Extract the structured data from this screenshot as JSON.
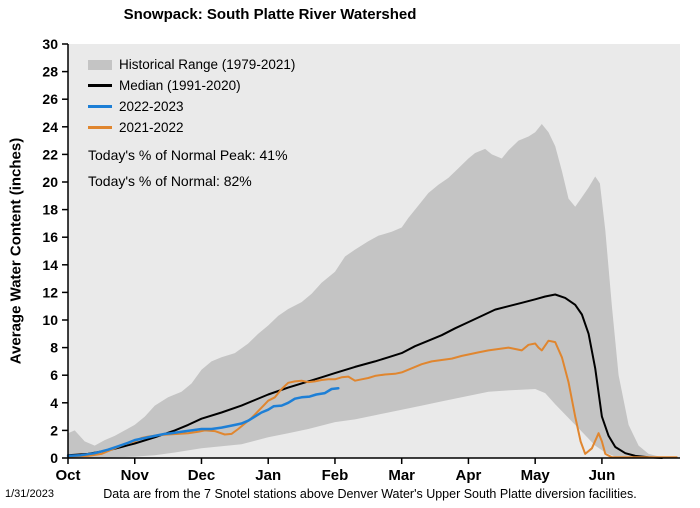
{
  "chart": {
    "title": "Snowpack: South Platte River Watershed",
    "y_axis_label": "Average Water Content (inches)",
    "legend": [
      {
        "label": "Historical Range (1979-2021)",
        "type": "band",
        "color": "#c4c4c4"
      },
      {
        "label": "Median (1991-2020)",
        "type": "line",
        "color": "#000000"
      },
      {
        "label": "2022-2023",
        "type": "line",
        "color": "#1d7fd6"
      },
      {
        "label": "2021-2022",
        "type": "line",
        "color": "#e0862f"
      }
    ],
    "annotations": {
      "peak": "Today's % of Normal Peak: 41%",
      "normal": "Today's % of Normal: 82%"
    },
    "footer": {
      "date": "1/31/2023",
      "caption": "Data are from the 7 Snotel stations above Denver Water's Upper South Platte diversion facilities."
    }
  },
  "chart_data": {
    "type": "line",
    "title": "Snowpack: South Platte River Watershed",
    "xlabel": "",
    "ylabel": "Average Water Content (inches)",
    "x_unit": "months since Oct 1",
    "x_tick_labels": [
      "Oct",
      "Nov",
      "Dec",
      "Jan",
      "Feb",
      "Mar",
      "Apr",
      "May",
      "Jun"
    ],
    "xlim": [
      0,
      9.17
    ],
    "ylim": [
      0,
      30
    ],
    "y_ticks": [
      0,
      2,
      4,
      6,
      8,
      10,
      12,
      14,
      16,
      18,
      20,
      22,
      24,
      26,
      28,
      30
    ],
    "grid": false,
    "legend_position": "upper-left-inside",
    "plot_bg": "#eaeaea",
    "band": {
      "name": "Historical Range (1979-2021)",
      "color": "#c4c4c4",
      "upper": [
        [
          0,
          1.8
        ],
        [
          0.1,
          2.0
        ],
        [
          0.25,
          1.2
        ],
        [
          0.4,
          0.9
        ],
        [
          0.55,
          1.3
        ],
        [
          0.7,
          1.6
        ],
        [
          0.85,
          2.0
        ],
        [
          1.0,
          2.4
        ],
        [
          1.15,
          3.0
        ],
        [
          1.3,
          3.8
        ],
        [
          1.5,
          4.4
        ],
        [
          1.7,
          4.8
        ],
        [
          1.85,
          5.4
        ],
        [
          2.0,
          6.4
        ],
        [
          2.15,
          7.0
        ],
        [
          2.3,
          7.3
        ],
        [
          2.5,
          7.6
        ],
        [
          2.7,
          8.3
        ],
        [
          2.85,
          9.0
        ],
        [
          3.0,
          9.6
        ],
        [
          3.15,
          10.3
        ],
        [
          3.3,
          10.8
        ],
        [
          3.5,
          11.3
        ],
        [
          3.65,
          11.9
        ],
        [
          3.8,
          12.7
        ],
        [
          4.0,
          13.5
        ],
        [
          4.15,
          14.6
        ],
        [
          4.3,
          15.1
        ],
        [
          4.5,
          15.7
        ],
        [
          4.65,
          16.1
        ],
        [
          4.85,
          16.4
        ],
        [
          5.0,
          16.7
        ],
        [
          5.1,
          17.4
        ],
        [
          5.25,
          18.3
        ],
        [
          5.4,
          19.2
        ],
        [
          5.55,
          19.8
        ],
        [
          5.7,
          20.3
        ],
        [
          5.85,
          21.0
        ],
        [
          6.0,
          21.7
        ],
        [
          6.1,
          22.1
        ],
        [
          6.25,
          22.4
        ],
        [
          6.35,
          22.0
        ],
        [
          6.5,
          21.7
        ],
        [
          6.6,
          22.3
        ],
        [
          6.75,
          23.0
        ],
        [
          6.9,
          23.3
        ],
        [
          7.0,
          23.6
        ],
        [
          7.1,
          24.2
        ],
        [
          7.2,
          23.6
        ],
        [
          7.3,
          22.6
        ],
        [
          7.4,
          20.8
        ],
        [
          7.5,
          18.8
        ],
        [
          7.6,
          18.2
        ],
        [
          7.7,
          18.9
        ],
        [
          7.8,
          19.6
        ],
        [
          7.9,
          20.4
        ],
        [
          7.97,
          19.9
        ],
        [
          8.05,
          16.5
        ],
        [
          8.15,
          11.0
        ],
        [
          8.25,
          6.0
        ],
        [
          8.4,
          2.4
        ],
        [
          8.55,
          0.9
        ],
        [
          8.7,
          0.3
        ],
        [
          8.9,
          0.05
        ],
        [
          9.1,
          0
        ]
      ],
      "lower": [
        [
          0,
          0
        ],
        [
          0.5,
          0.02
        ],
        [
          1.0,
          0.1
        ],
        [
          1.3,
          0.2
        ],
        [
          1.6,
          0.4
        ],
        [
          2.0,
          0.7
        ],
        [
          2.3,
          0.85
        ],
        [
          2.6,
          1.0
        ],
        [
          3.0,
          1.5
        ],
        [
          3.3,
          1.8
        ],
        [
          3.6,
          2.1
        ],
        [
          4.0,
          2.6
        ],
        [
          4.3,
          2.8
        ],
        [
          4.6,
          3.1
        ],
        [
          5.0,
          3.5
        ],
        [
          5.3,
          3.8
        ],
        [
          5.6,
          4.1
        ],
        [
          6.0,
          4.5
        ],
        [
          6.3,
          4.8
        ],
        [
          6.6,
          4.9
        ],
        [
          7.0,
          5.0
        ],
        [
          7.15,
          4.7
        ],
        [
          7.3,
          3.9
        ],
        [
          7.5,
          2.9
        ],
        [
          7.7,
          1.9
        ],
        [
          7.9,
          0.9
        ],
        [
          8.05,
          0.4
        ],
        [
          8.2,
          0.1
        ],
        [
          8.4,
          0.02
        ],
        [
          9.1,
          0
        ]
      ]
    },
    "series": [
      {
        "name": "Median (1991-2020)",
        "color": "#000000",
        "width": 2,
        "points": [
          [
            0,
            0.2
          ],
          [
            0.3,
            0.3
          ],
          [
            0.6,
            0.55
          ],
          [
            0.8,
            0.8
          ],
          [
            1.0,
            1.05
          ],
          [
            1.3,
            1.5
          ],
          [
            1.6,
            2.0
          ],
          [
            1.8,
            2.4
          ],
          [
            2.0,
            2.85
          ],
          [
            2.3,
            3.3
          ],
          [
            2.6,
            3.8
          ],
          [
            2.8,
            4.2
          ],
          [
            3.0,
            4.6
          ],
          [
            3.3,
            5.1
          ],
          [
            3.6,
            5.55
          ],
          [
            3.8,
            5.85
          ],
          [
            4.0,
            6.15
          ],
          [
            4.3,
            6.6
          ],
          [
            4.6,
            7.0
          ],
          [
            4.8,
            7.3
          ],
          [
            5.0,
            7.6
          ],
          [
            5.2,
            8.1
          ],
          [
            5.4,
            8.5
          ],
          [
            5.6,
            8.9
          ],
          [
            5.8,
            9.4
          ],
          [
            6.0,
            9.85
          ],
          [
            6.2,
            10.3
          ],
          [
            6.4,
            10.75
          ],
          [
            6.6,
            11.0
          ],
          [
            6.8,
            11.25
          ],
          [
            7.0,
            11.5
          ],
          [
            7.15,
            11.7
          ],
          [
            7.3,
            11.85
          ],
          [
            7.45,
            11.6
          ],
          [
            7.6,
            11.1
          ],
          [
            7.7,
            10.4
          ],
          [
            7.8,
            9.0
          ],
          [
            7.9,
            6.5
          ],
          [
            8.0,
            3.0
          ],
          [
            8.1,
            1.6
          ],
          [
            8.2,
            0.8
          ],
          [
            8.35,
            0.35
          ],
          [
            8.5,
            0.15
          ],
          [
            8.7,
            0.05
          ],
          [
            8.9,
            0
          ]
        ]
      },
      {
        "name": "2021-2022",
        "color": "#e0862f",
        "width": 2,
        "points": [
          [
            0,
            0.1
          ],
          [
            0.3,
            0.15
          ],
          [
            0.5,
            0.3
          ],
          [
            0.7,
            0.7
          ],
          [
            0.85,
            1.0
          ],
          [
            1.0,
            1.2
          ],
          [
            1.1,
            1.45
          ],
          [
            1.2,
            1.55
          ],
          [
            1.35,
            1.65
          ],
          [
            1.5,
            1.7
          ],
          [
            1.65,
            1.75
          ],
          [
            1.8,
            1.8
          ],
          [
            1.95,
            1.9
          ],
          [
            2.05,
            2.0
          ],
          [
            2.2,
            1.95
          ],
          [
            2.35,
            1.7
          ],
          [
            2.45,
            1.75
          ],
          [
            2.55,
            2.1
          ],
          [
            2.65,
            2.5
          ],
          [
            2.75,
            2.9
          ],
          [
            2.85,
            3.4
          ],
          [
            2.95,
            3.9
          ],
          [
            3.0,
            4.15
          ],
          [
            3.1,
            4.4
          ],
          [
            3.2,
            5.0
          ],
          [
            3.3,
            5.45
          ],
          [
            3.4,
            5.55
          ],
          [
            3.5,
            5.6
          ],
          [
            3.6,
            5.5
          ],
          [
            3.7,
            5.55
          ],
          [
            3.8,
            5.65
          ],
          [
            3.9,
            5.7
          ],
          [
            4.0,
            5.7
          ],
          [
            4.1,
            5.85
          ],
          [
            4.2,
            5.9
          ],
          [
            4.3,
            5.6
          ],
          [
            4.4,
            5.7
          ],
          [
            4.5,
            5.8
          ],
          [
            4.6,
            5.95
          ],
          [
            4.75,
            6.05
          ],
          [
            4.9,
            6.1
          ],
          [
            5.0,
            6.2
          ],
          [
            5.15,
            6.5
          ],
          [
            5.3,
            6.8
          ],
          [
            5.45,
            7.0
          ],
          [
            5.6,
            7.1
          ],
          [
            5.75,
            7.2
          ],
          [
            5.9,
            7.4
          ],
          [
            6.0,
            7.5
          ],
          [
            6.15,
            7.65
          ],
          [
            6.3,
            7.8
          ],
          [
            6.45,
            7.9
          ],
          [
            6.6,
            8.0
          ],
          [
            6.7,
            7.9
          ],
          [
            6.8,
            7.8
          ],
          [
            6.9,
            8.2
          ],
          [
            7.0,
            8.3
          ],
          [
            7.05,
            8.0
          ],
          [
            7.1,
            7.8
          ],
          [
            7.2,
            8.5
          ],
          [
            7.3,
            8.4
          ],
          [
            7.4,
            7.3
          ],
          [
            7.5,
            5.5
          ],
          [
            7.6,
            3.0
          ],
          [
            7.68,
            1.2
          ],
          [
            7.75,
            0.3
          ],
          [
            7.85,
            0.7
          ],
          [
            7.95,
            1.8
          ],
          [
            8.0,
            1.2
          ],
          [
            8.05,
            0.3
          ],
          [
            8.15,
            0.05
          ],
          [
            8.5,
            0.05
          ],
          [
            9.12,
            0.05
          ]
        ]
      },
      {
        "name": "2022-2023",
        "color": "#1d7fd6",
        "width": 2.5,
        "points": [
          [
            0,
            0.15
          ],
          [
            0.2,
            0.2
          ],
          [
            0.4,
            0.35
          ],
          [
            0.6,
            0.6
          ],
          [
            0.75,
            0.85
          ],
          [
            0.9,
            1.1
          ],
          [
            1.0,
            1.3
          ],
          [
            1.15,
            1.45
          ],
          [
            1.3,
            1.6
          ],
          [
            1.45,
            1.75
          ],
          [
            1.55,
            1.8
          ],
          [
            1.7,
            1.9
          ],
          [
            1.85,
            2.0
          ],
          [
            2.0,
            2.1
          ],
          [
            2.15,
            2.1
          ],
          [
            2.3,
            2.2
          ],
          [
            2.45,
            2.35
          ],
          [
            2.6,
            2.5
          ],
          [
            2.7,
            2.7
          ],
          [
            2.8,
            3.0
          ],
          [
            2.9,
            3.3
          ],
          [
            3.0,
            3.5
          ],
          [
            3.08,
            3.75
          ],
          [
            3.2,
            3.8
          ],
          [
            3.3,
            4.0
          ],
          [
            3.4,
            4.3
          ],
          [
            3.5,
            4.4
          ],
          [
            3.62,
            4.45
          ],
          [
            3.72,
            4.6
          ],
          [
            3.85,
            4.7
          ],
          [
            3.95,
            5.0
          ],
          [
            4.05,
            5.05
          ]
        ]
      }
    ]
  }
}
